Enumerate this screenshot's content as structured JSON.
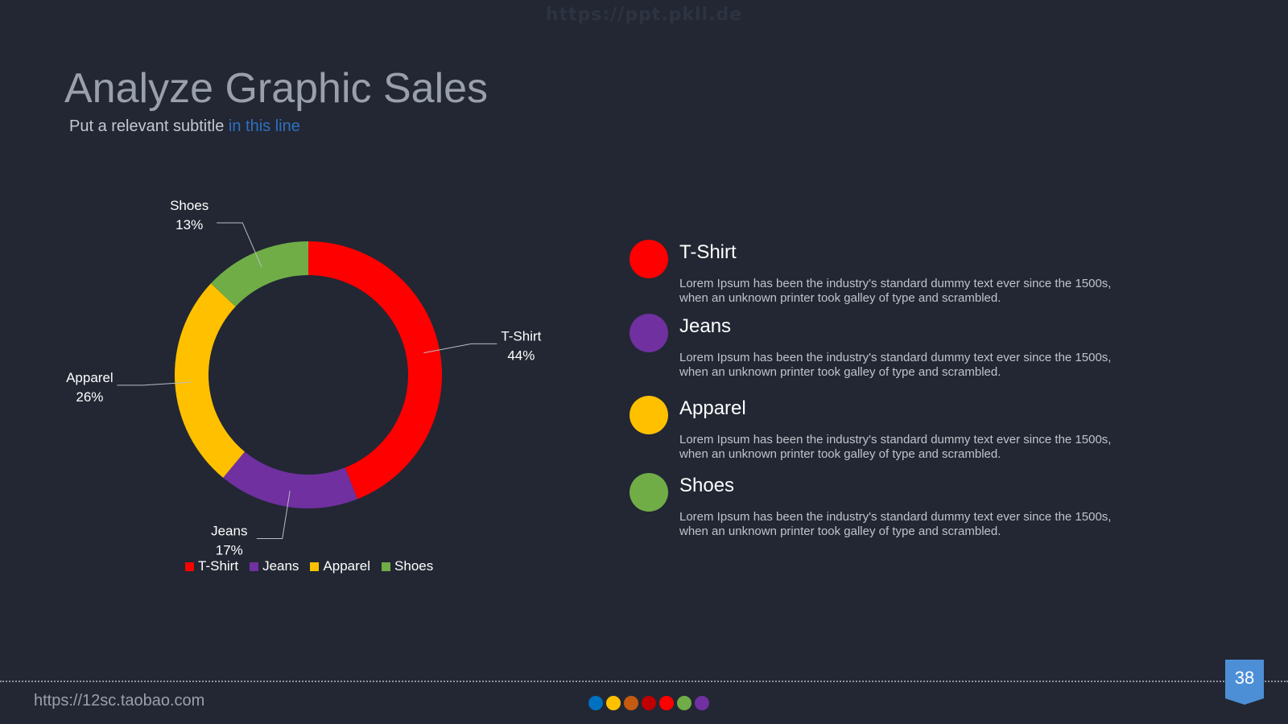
{
  "watermark": "https://ppt.pkll.de",
  "header": {
    "title": "Analyze Graphic Sales",
    "subtitle_plain": "Put a relevant subtitle ",
    "subtitle_highlight": "in this line"
  },
  "chart_data": {
    "type": "pie",
    "donut": true,
    "slices": [
      {
        "label": "T-Shirt",
        "value": 44,
        "value_label": "44%",
        "color": "#ff0000"
      },
      {
        "label": "Jeans",
        "value": 17,
        "value_label": "17%",
        "color": "#7030a0"
      },
      {
        "label": "Apparel",
        "value": 26,
        "value_label": "26%",
        "color": "#ffc000"
      },
      {
        "label": "Shoes",
        "value": 13,
        "value_label": "13%",
        "color": "#70ad47"
      }
    ],
    "legend": [
      "T-Shirt",
      "Jeans",
      "Apparel",
      "Shoes"
    ],
    "legend_position": "bottom"
  },
  "details": [
    {
      "title": "T-Shirt",
      "color": "#ff0000",
      "line1": "Lorem Ipsum has been the industry's standard dummy text ever since the 1500s,",
      "line2": "when an unknown printer took galley of type and scrambled."
    },
    {
      "title": "Jeans",
      "color": "#7030a0",
      "line1": "Lorem Ipsum has been the industry's standard dummy text ever since the 1500s,",
      "line2": "when an unknown printer took galley of type and scrambled."
    },
    {
      "title": "Apparel",
      "color": "#ffc000",
      "line1": "Lorem Ipsum has been the industry's standard dummy text ever since the 1500s,",
      "line2": "when an unknown printer took galley of type and scrambled."
    },
    {
      "title": "Shoes",
      "color": "#70ad47",
      "line1": "Lorem Ipsum has been the industry's standard dummy text ever since the 1500s,",
      "line2": "when an unknown printer took galley of type and scrambled."
    }
  ],
  "footer": {
    "url": "https://12sc.taobao.com",
    "page_number": "38",
    "dot_colors": [
      "#0070c0",
      "#ffc000",
      "#c55a11",
      "#c00000",
      "#ff0000",
      "#70ad47",
      "#7030a0"
    ]
  }
}
